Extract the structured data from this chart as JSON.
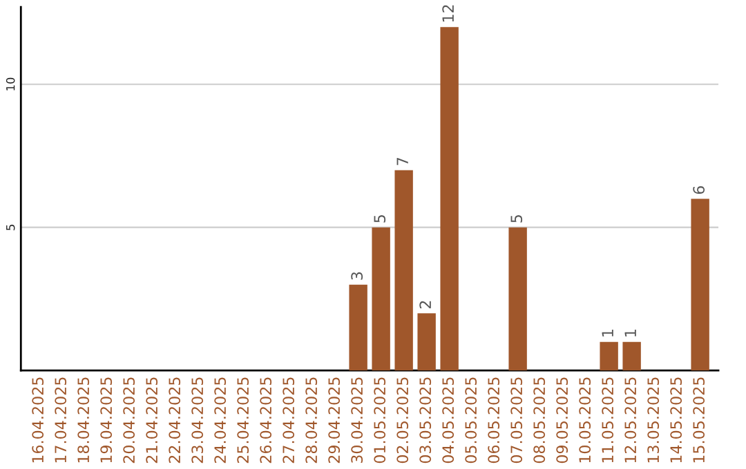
{
  "chart_data": {
    "type": "bar",
    "categories": [
      "16.04.2025",
      "17.04.2025",
      "18.04.2025",
      "19.04.2025",
      "20.04.2025",
      "21.04.2025",
      "22.04.2025",
      "23.04.2025",
      "24.04.2025",
      "25.04.2025",
      "26.04.2025",
      "27.04.2025",
      "28.04.2025",
      "29.04.2025",
      "30.04.2025",
      "01.05.2025",
      "02.05.2025",
      "03.05.2025",
      "04.05.2025",
      "05.05.2025",
      "06.05.2025",
      "07.05.2025",
      "08.05.2025",
      "09.05.2025",
      "10.05.2025",
      "11.05.2025",
      "12.05.2025",
      "13.05.2025",
      "14.05.2025",
      "15.05.2025"
    ],
    "values": [
      0,
      0,
      0,
      0,
      0,
      0,
      0,
      0,
      0,
      0,
      0,
      0,
      0,
      0,
      3,
      5,
      7,
      2,
      12,
      0,
      0,
      5,
      0,
      0,
      0,
      1,
      1,
      0,
      0,
      6
    ],
    "value_labels": [
      null,
      null,
      null,
      null,
      null,
      null,
      null,
      null,
      null,
      null,
      null,
      null,
      null,
      null,
      "3",
      "5",
      "7",
      "2",
      "12",
      null,
      null,
      "5",
      null,
      null,
      null,
      "1",
      "1",
      null,
      null,
      "6"
    ],
    "color": "#a0572b",
    "ylim": [
      0,
      12.7
    ],
    "yticks": [
      5,
      10
    ],
    "grid": "y"
  }
}
